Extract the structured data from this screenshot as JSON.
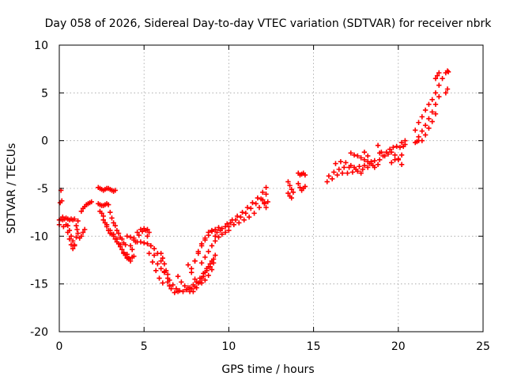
{
  "chart_data": {
    "type": "scatter",
    "title": "Day 058 of 2026, Sidereal Day-to-day VTEC variation (SDTVAR) for receiver nbrk",
    "xlabel": "GPS time / hours",
    "ylabel": "SDTVAR / TECUs",
    "xlim": [
      0,
      25
    ],
    "ylim": [
      -20,
      10
    ],
    "xticks": [
      0,
      5,
      10,
      15,
      20,
      25
    ],
    "xtick_labels": [
      "0",
      "5",
      "10",
      "15",
      "20",
      "25"
    ],
    "yticks": [
      -20,
      -15,
      -10,
      -5,
      0,
      5,
      10
    ],
    "ytick_labels": [
      "-20",
      "-15",
      "-10",
      "-5",
      "0",
      "5",
      "10"
    ],
    "grid": true,
    "marker": "plus",
    "color": "#ff0000",
    "series": [
      {
        "name": "SDTVAR",
        "segments": [
          {
            "x": [
              0.0,
              0.05,
              0.1,
              0.15,
              0.2,
              0.25
            ],
            "y": [
              -8.8,
              -6.5,
              -5.2,
              -6.3,
              -8.0,
              -9.0
            ]
          },
          {
            "x": [
              0.0,
              0.1,
              0.2,
              0.3,
              0.4,
              0.5,
              0.6,
              0.7,
              0.8,
              0.9
            ],
            "y": [
              -8.3,
              -8.2,
              -8.3,
              -8.2,
              -8.1,
              -8.2,
              -8.3,
              -8.2,
              -8.3,
              -8.2
            ]
          },
          {
            "x": [
              0.4,
              0.5,
              0.6,
              0.7,
              0.8,
              0.9,
              1.0,
              1.05,
              1.1
            ],
            "y": [
              -8.8,
              -9.6,
              -10.3,
              -10.9,
              -11.3,
              -10.9,
              -10.1,
              -9.3,
              -8.4
            ]
          },
          {
            "x": [
              0.5,
              0.6,
              0.7,
              0.8,
              0.9
            ],
            "y": [
              -8.9,
              -9.4,
              -10.0,
              -10.5,
              -11.0
            ]
          },
          {
            "x": [
              1.0,
              1.1,
              1.2,
              1.3,
              1.4,
              1.5
            ],
            "y": [
              -8.9,
              -9.7,
              -10.2,
              -10.0,
              -9.6,
              -9.3
            ]
          },
          {
            "x": [
              1.3,
              1.4,
              1.5,
              1.6,
              1.7,
              1.8,
              1.9
            ],
            "y": [
              -7.4,
              -7.1,
              -6.9,
              -6.7,
              -6.6,
              -6.5,
              -6.4
            ]
          },
          {
            "x": [
              2.3,
              2.4,
              2.5,
              2.6,
              2.7,
              2.8,
              2.9,
              3.0,
              3.1,
              3.2,
              3.3
            ],
            "y": [
              -4.9,
              -5.0,
              -5.1,
              -5.2,
              -5.1,
              -5.0,
              -5.0,
              -5.1,
              -5.2,
              -5.3,
              -5.2
            ]
          },
          {
            "x": [
              2.3,
              2.4,
              2.5,
              2.6,
              2.7,
              2.8,
              2.9
            ],
            "y": [
              -6.6,
              -6.7,
              -6.8,
              -6.8,
              -6.7,
              -6.6,
              -6.7
            ]
          },
          {
            "x": [
              2.4,
              2.6,
              2.8,
              3.0,
              3.2,
              3.4,
              3.6,
              3.8,
              4.0,
              4.2,
              4.4
            ],
            "y": [
              -7.4,
              -8.3,
              -9.0,
              -9.4,
              -9.8,
              -10.3,
              -10.9,
              -11.7,
              -12.3,
              -12.6,
              -12.1
            ]
          },
          {
            "x": [
              2.5,
              2.7,
              2.9,
              3.1,
              3.3,
              3.5,
              3.7,
              3.9,
              4.1,
              4.3
            ],
            "y": [
              -7.6,
              -8.6,
              -9.4,
              -9.8,
              -10.3,
              -10.8,
              -11.4,
              -12.0,
              -12.4,
              -12.2
            ]
          },
          {
            "x": [
              2.6,
              2.8,
              3.0,
              3.2,
              3.4,
              3.6,
              3.8,
              4.0
            ],
            "y": [
              -7.9,
              -8.8,
              -9.7,
              -10.0,
              -10.6,
              -11.1,
              -11.8,
              -12.2
            ]
          },
          {
            "x": [
              3.0,
              3.2,
              3.4,
              3.6,
              3.8
            ],
            "y": [
              -7.5,
              -8.6,
              -9.4,
              -10.1,
              -10.7
            ]
          },
          {
            "x": [
              3.1,
              3.3,
              3.5,
              3.7,
              3.9
            ],
            "y": [
              -8.1,
              -8.9,
              -9.7,
              -10.3,
              -10.9
            ]
          },
          {
            "x": [
              4.0,
              4.2,
              4.4,
              4.6,
              4.8,
              5.0,
              5.2
            ],
            "y": [
              -11.9,
              -11.0,
              -10.2,
              -9.6,
              -9.3,
              -9.2,
              -9.3
            ]
          },
          {
            "x": [
              4.1,
              4.3,
              4.5,
              4.7,
              4.9,
              5.1,
              5.3
            ],
            "y": [
              -12.3,
              -11.4,
              -10.6,
              -9.9,
              -9.5,
              -9.4,
              -9.6
            ]
          },
          {
            "x": [
              4.0,
              4.2,
              4.4,
              4.6,
              4.8,
              5.0,
              5.2,
              5.4,
              5.6,
              5.8,
              6.0,
              6.2,
              6.4,
              6.6,
              6.8,
              7.0
            ],
            "y": [
              -10.0,
              -10.1,
              -10.4,
              -10.6,
              -10.6,
              -10.7,
              -10.8,
              -11.0,
              -11.3,
              -11.8,
              -12.6,
              -13.7,
              -14.8,
              -15.5,
              -15.9,
              -15.8
            ]
          },
          {
            "x": [
              5.2,
              5.4,
              5.6,
              5.8,
              6.0,
              6.2,
              6.4
            ],
            "y": [
              -10.0,
              -11.0,
              -12.0,
              -12.9,
              -13.4,
              -13.8,
              -14.0
            ]
          },
          {
            "x": [
              5.3,
              5.5,
              5.7,
              5.9,
              6.1
            ],
            "y": [
              -11.8,
              -12.7,
              -13.6,
              -14.4,
              -14.9
            ]
          },
          {
            "x": [
              6.0,
              6.1,
              6.2,
              6.3,
              6.4,
              6.5
            ],
            "y": [
              -11.8,
              -12.3,
              -12.9,
              -13.6,
              -14.4,
              -15.2
            ]
          },
          {
            "x": [
              6.5,
              6.7,
              6.9,
              7.1,
              7.3,
              7.5,
              7.7,
              7.9,
              8.1,
              8.3,
              8.5,
              8.7,
              8.9,
              9.1
            ],
            "y": [
              -14.6,
              -15.1,
              -15.5,
              -15.7,
              -15.8,
              -15.6,
              -15.4,
              -15.1,
              -14.8,
              -14.4,
              -13.9,
              -13.4,
              -12.9,
              -12.4
            ]
          },
          {
            "x": [
              7.0,
              7.2,
              7.4,
              7.6,
              7.8,
              8.0,
              8.2,
              8.4,
              8.6,
              8.8,
              9.0,
              9.2
            ],
            "y": [
              -14.2,
              -14.8,
              -15.2,
              -15.4,
              -15.5,
              -15.3,
              -14.9,
              -14.4,
              -13.8,
              -13.2,
              -12.6,
              -12.0
            ]
          },
          {
            "x": [
              7.5,
              7.7,
              7.9,
              8.1,
              8.3,
              8.5,
              8.7,
              8.9,
              9.1
            ],
            "y": [
              -15.6,
              -15.8,
              -15.8,
              -15.4,
              -14.8,
              -14.2,
              -13.6,
              -13.2,
              -12.8
            ]
          },
          {
            "x": [
              7.6,
              7.8,
              8.0,
              8.2,
              8.4,
              8.6,
              8.8,
              9.0
            ],
            "y": [
              -13.0,
              -13.8,
              -14.5,
              -14.9,
              -14.9,
              -14.6,
              -14.1,
              -13.5
            ]
          },
          {
            "x": [
              7.8,
              8.0,
              8.2,
              8.4,
              8.6,
              8.8,
              9.0,
              9.2,
              9.4
            ],
            "y": [
              -13.4,
              -12.6,
              -11.8,
              -11.0,
              -10.4,
              -9.9,
              -9.5,
              -9.3,
              -9.1
            ]
          },
          {
            "x": [
              8.0,
              8.2,
              8.4,
              8.6,
              8.8,
              9.0
            ],
            "y": [
              -12.6,
              -11.6,
              -10.8,
              -10.2,
              -9.6,
              -9.4
            ]
          },
          {
            "x": [
              8.4,
              8.6,
              8.8,
              9.0,
              9.2,
              9.4,
              9.6,
              9.8,
              10.0
            ],
            "y": [
              -12.8,
              -12.2,
              -11.6,
              -11.0,
              -10.5,
              -10.1,
              -9.8,
              -9.6,
              -9.4
            ]
          },
          {
            "x": [
              9.2,
              9.5,
              9.8,
              10.1,
              10.4,
              10.7,
              11.0,
              11.3,
              11.6,
              11.9,
              12.2
            ],
            "y": [
              -10.0,
              -9.4,
              -9.0,
              -8.6,
              -8.3,
              -8.0,
              -7.6,
              -7.1,
              -6.6,
              -6.1,
              -5.6
            ]
          },
          {
            "x": [
              9.3,
              9.6,
              9.9,
              10.2,
              10.5,
              10.8,
              11.1,
              11.4,
              11.7,
              12.0,
              12.2
            ],
            "y": [
              -9.6,
              -9.2,
              -8.7,
              -8.3,
              -7.9,
              -7.5,
              -7.0,
              -6.5,
              -6.0,
              -5.4,
              -4.9
            ]
          },
          {
            "x": [
              10.0,
              10.3,
              10.6,
              10.9,
              11.2,
              11.5,
              11.8,
              12.1
            ],
            "y": [
              -9.0,
              -8.8,
              -8.6,
              -8.3,
              -8.0,
              -7.6,
              -7.0,
              -6.5
            ]
          },
          {
            "x": [
              12.0,
              12.1,
              12.2,
              12.3
            ],
            "y": [
              -6.2,
              -6.6,
              -7.0,
              -6.4
            ]
          },
          {
            "x": [
              13.5,
              13.6,
              13.7,
              13.8
            ],
            "y": [
              -4.3,
              -4.7,
              -5.1,
              -5.4
            ]
          },
          {
            "x": [
              13.5,
              13.6,
              13.7
            ],
            "y": [
              -5.5,
              -5.8,
              -6.0
            ]
          },
          {
            "x": [
              14.1,
              14.2,
              14.3,
              14.4,
              14.5
            ],
            "y": [
              -3.4,
              -3.6,
              -3.5,
              -3.4,
              -3.6
            ]
          },
          {
            "x": [
              14.1,
              14.2,
              14.3,
              14.4,
              14.5
            ],
            "y": [
              -4.5,
              -4.9,
              -5.2,
              -5.0,
              -4.8
            ]
          },
          {
            "x": [
              15.8,
              16.1,
              16.4,
              16.7,
              17.0,
              17.3,
              17.6,
              17.9,
              18.2,
              18.5,
              18.8
            ],
            "y": [
              -4.3,
              -4.0,
              -3.6,
              -3.4,
              -3.4,
              -3.3,
              -3.2,
              -3.0,
              -2.8,
              -2.6,
              -2.5
            ]
          },
          {
            "x": [
              15.9,
              16.2,
              16.5,
              16.8,
              17.1,
              17.4,
              17.7,
              18.0,
              18.3,
              18.6,
              18.9
            ],
            "y": [
              -3.7,
              -3.3,
              -3.0,
              -2.8,
              -2.8,
              -2.8,
              -2.7,
              -2.6,
              -2.4,
              -2.1,
              -2.0
            ]
          },
          {
            "x": [
              16.3,
              16.6,
              16.9,
              17.2,
              17.5,
              17.8
            ],
            "y": [
              -2.4,
              -2.2,
              -2.3,
              -2.6,
              -3.0,
              -3.4
            ]
          },
          {
            "x": [
              17.2,
              17.4,
              17.6,
              17.8,
              18.0,
              18.2,
              18.4
            ],
            "y": [
              -1.3,
              -1.5,
              -1.6,
              -1.8,
              -2.0,
              -2.2,
              -2.4
            ]
          },
          {
            "x": [
              18.0,
              18.2,
              18.4,
              18.6
            ],
            "y": [
              -1.2,
              -1.6,
              -2.2,
              -2.8
            ]
          },
          {
            "x": [
              18.8,
              19.0,
              19.2,
              19.4,
              19.6,
              19.8,
              20.0,
              20.2
            ],
            "y": [
              -0.5,
              -1.2,
              -1.6,
              -1.4,
              -1.2,
              -1.5,
              -2.0,
              -2.5
            ]
          },
          {
            "x": [
              18.9,
              19.1,
              19.3,
              19.5,
              19.7,
              19.9,
              20.1,
              20.3
            ],
            "y": [
              -1.3,
              -1.6,
              -1.2,
              -0.9,
              -0.7,
              -0.6,
              -0.7,
              -0.6
            ]
          },
          {
            "x": [
              19.6,
              19.8,
              20.0,
              20.2,
              20.4
            ],
            "y": [
              -2.3,
              -2.0,
              -1.9,
              -1.5,
              -0.4
            ]
          },
          {
            "x": [
              20.2,
              20.4
            ],
            "y": [
              -0.2,
              0.0
            ]
          },
          {
            "x": [
              21.0,
              21.1,
              21.2
            ],
            "y": [
              -0.2,
              -0.1,
              0.0
            ]
          },
          {
            "x": [
              21.0,
              21.2,
              21.4,
              21.6,
              21.8,
              22.0,
              22.2,
              22.4,
              22.6
            ],
            "y": [
              1.1,
              1.9,
              2.5,
              3.2,
              3.8,
              4.3,
              5.0,
              5.8,
              6.5
            ]
          },
          {
            "x": [
              21.2,
              21.4,
              21.6,
              21.8,
              22.0,
              22.2,
              22.4
            ],
            "y": [
              0.4,
              1.0,
              1.6,
              2.3,
              3.0,
              3.8,
              4.6
            ]
          },
          {
            "x": [
              21.4,
              21.6,
              21.8,
              22.0,
              22.2
            ],
            "y": [
              0.0,
              0.6,
              1.3,
              2.0,
              2.8
            ]
          },
          {
            "x": [
              22.2,
              22.3,
              22.4
            ],
            "y": [
              6.5,
              6.8,
              7.1
            ]
          },
          {
            "x": [
              22.8,
              22.9,
              22.95
            ],
            "y": [
              7.1,
              7.3,
              7.2
            ]
          },
          {
            "x": [
              22.8,
              22.9
            ],
            "y": [
              5.0,
              5.4
            ]
          }
        ]
      }
    ]
  }
}
